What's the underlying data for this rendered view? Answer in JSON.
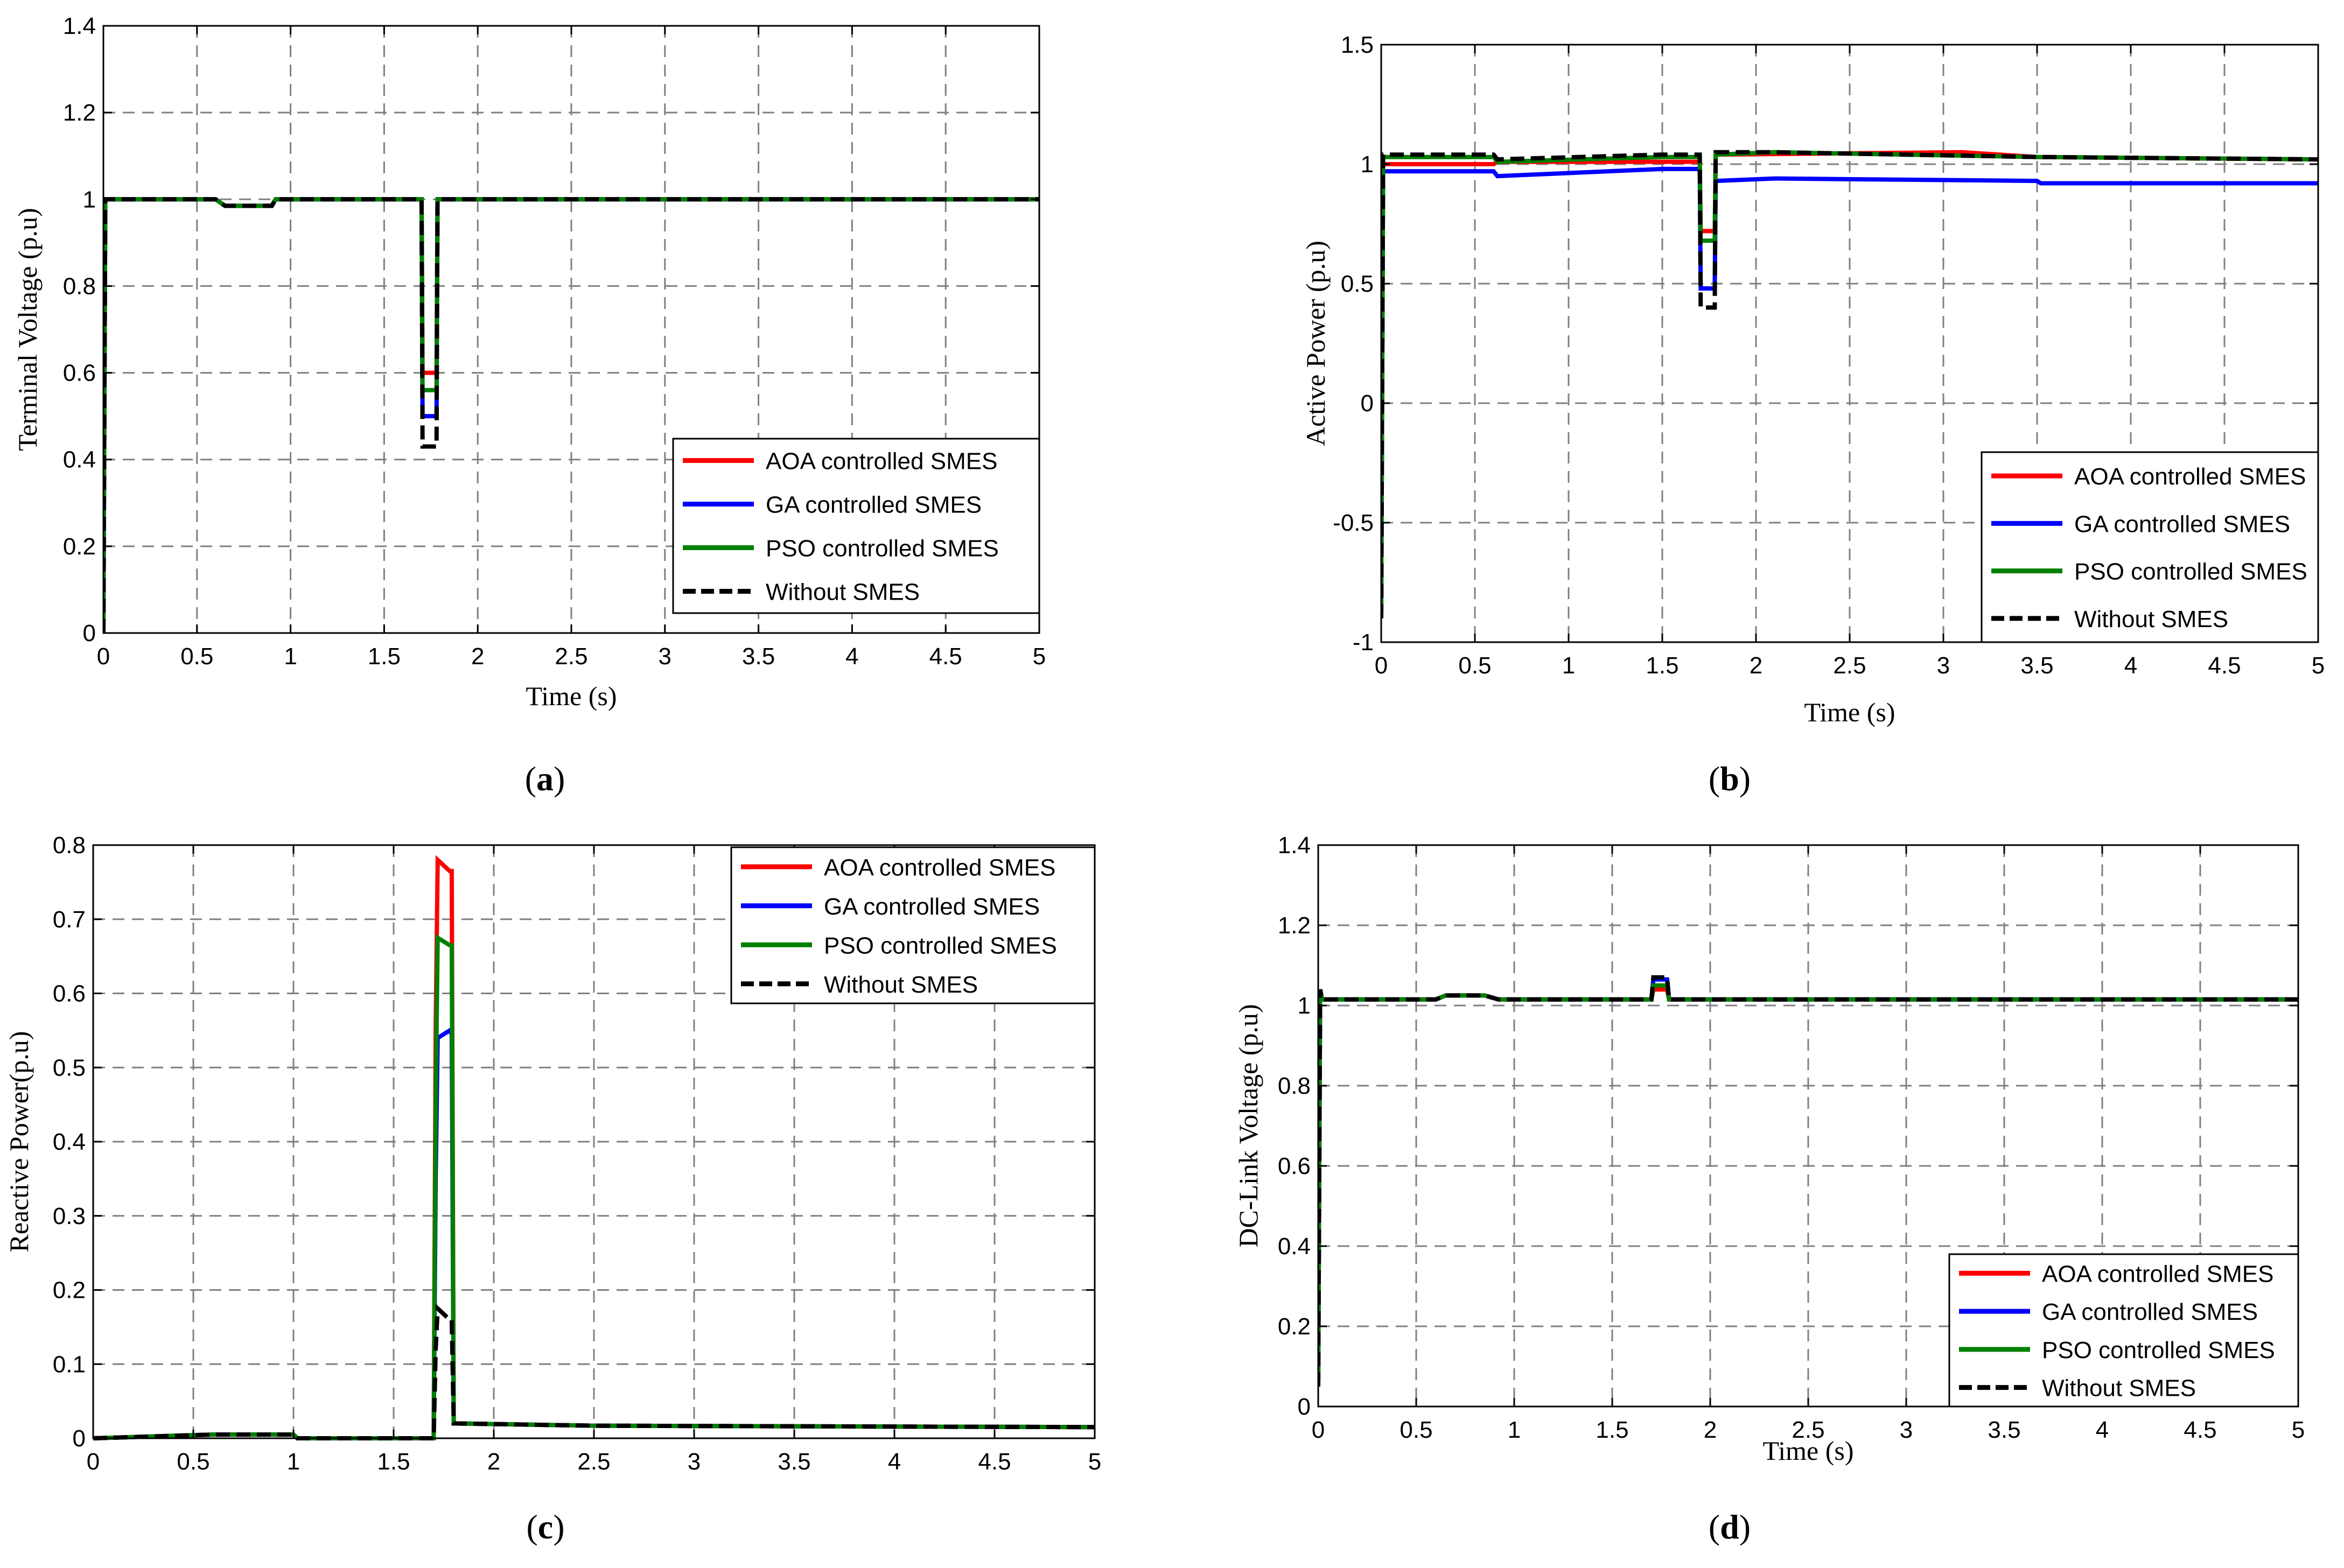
{
  "figure": {
    "subfigure_labels": [
      "(a)",
      "(b)",
      "(c)",
      "(d)"
    ]
  },
  "colors": {
    "aoa": "#ff0000",
    "ga": "#0000ff",
    "pso": "#008000",
    "without": "#000000",
    "grid": "#808080"
  },
  "chart_data": [
    {
      "id": "a",
      "type": "line",
      "label": "(a)",
      "title": "",
      "xlabel": "Time (s)",
      "ylabel": "Terminal Voltage (p.u)",
      "xlim": [
        0,
        5
      ],
      "ylim": [
        0,
        1.4
      ],
      "xticks": [
        0,
        0.5,
        1,
        1.5,
        2,
        2.5,
        3,
        3.5,
        4,
        4.5,
        5
      ],
      "xtick_labels": [
        "0",
        "0.5",
        "1",
        "1.5",
        "2",
        "2.5",
        "3",
        "3.5",
        "4",
        "4.5",
        "5"
      ],
      "yticks": [
        0,
        0.2,
        0.4,
        0.6,
        0.8,
        1,
        1.2,
        1.4
      ],
      "ytick_labels": [
        "0",
        "0.2",
        "0.4",
        "0.6",
        "0.8",
        "1",
        "1.2",
        "1.4"
      ],
      "grid": true,
      "legend_position": "bottom-right",
      "series": [
        {
          "name": "AOA controlled SMES",
          "key": "aoa",
          "dash": false,
          "x": [
            0,
            0.01,
            0.6,
            0.65,
            0.9,
            0.92,
            1.7,
            1.705,
            1.78,
            1.785,
            5
          ],
          "y": [
            0,
            1.0,
            1.0,
            0.985,
            0.985,
            1.0,
            1.0,
            0.6,
            0.6,
            1.0,
            1.0
          ]
        },
        {
          "name": "GA controlled SMES",
          "key": "ga",
          "dash": false,
          "x": [
            0,
            0.01,
            0.6,
            0.65,
            0.9,
            0.92,
            1.7,
            1.705,
            1.78,
            1.785,
            5
          ],
          "y": [
            0,
            1.0,
            1.0,
            0.985,
            0.985,
            1.0,
            1.0,
            0.5,
            0.5,
            1.0,
            1.0
          ]
        },
        {
          "name": "PSO controlled SMES",
          "key": "pso",
          "dash": false,
          "x": [
            0,
            0.01,
            0.6,
            0.65,
            0.9,
            0.92,
            1.7,
            1.705,
            1.78,
            1.785,
            5
          ],
          "y": [
            0,
            1.0,
            1.0,
            0.985,
            0.985,
            1.0,
            1.0,
            0.56,
            0.56,
            1.0,
            1.0
          ]
        },
        {
          "name": "Without  SMES",
          "key": "without",
          "dash": true,
          "x": [
            0,
            0.01,
            0.6,
            0.65,
            0.9,
            0.92,
            1.7,
            1.705,
            1.78,
            1.785,
            5
          ],
          "y": [
            0,
            1.0,
            1.0,
            0.985,
            0.985,
            1.0,
            1.0,
            0.43,
            0.43,
            1.0,
            1.0
          ]
        }
      ]
    },
    {
      "id": "b",
      "type": "line",
      "label": "(b)",
      "title": "",
      "xlabel": "Time (s)",
      "ylabel": "Active Power (p.u)",
      "xlim": [
        0,
        5
      ],
      "ylim": [
        -1,
        1.5
      ],
      "xticks": [
        0,
        0.5,
        1,
        1.5,
        2,
        2.5,
        3,
        3.5,
        4,
        4.5,
        5
      ],
      "xtick_labels": [
        "0",
        "0.5",
        "1",
        "1.5",
        "2",
        "2.5",
        "3",
        "3.5",
        "4",
        "4.5",
        "5"
      ],
      "yticks": [
        -1,
        -0.5,
        0,
        0.5,
        1,
        1.5
      ],
      "ytick_labels": [
        "-1",
        "-0.5",
        "0",
        "0.5",
        "1",
        "1.5"
      ],
      "grid": true,
      "legend_position": "bottom-right",
      "series": [
        {
          "name": "AOA controlled SMES",
          "key": "aoa",
          "dash": false,
          "x": [
            0,
            0.01,
            0.6,
            0.62,
            1.5,
            1.7,
            1.705,
            1.78,
            1.785,
            3.1,
            3.5,
            5
          ],
          "y": [
            -0.9,
            1.0,
            1.0,
            1.01,
            1.01,
            1.01,
            0.72,
            0.72,
            1.04,
            1.05,
            1.03,
            1.02
          ]
        },
        {
          "name": "GA controlled SMES",
          "key": "ga",
          "dash": false,
          "x": [
            0,
            0.01,
            0.6,
            0.62,
            1.5,
            1.7,
            1.705,
            1.78,
            1.785,
            2.1,
            3.5,
            3.52,
            5
          ],
          "y": [
            -0.9,
            0.97,
            0.97,
            0.95,
            0.98,
            0.98,
            0.48,
            0.48,
            0.93,
            0.94,
            0.93,
            0.92,
            0.92
          ]
        },
        {
          "name": "PSO controlled SMES",
          "key": "pso",
          "dash": false,
          "x": [
            0,
            0.01,
            0.6,
            0.62,
            1.5,
            1.7,
            1.705,
            1.78,
            1.785,
            2.1,
            3.5,
            5
          ],
          "y": [
            -0.9,
            1.03,
            1.03,
            1.01,
            1.03,
            1.03,
            0.68,
            0.68,
            1.04,
            1.05,
            1.03,
            1.02
          ]
        },
        {
          "name": "Without SMES",
          "key": "without",
          "dash": true,
          "x": [
            0,
            0.01,
            0.6,
            0.62,
            1.5,
            1.7,
            1.705,
            1.78,
            1.785,
            2.1,
            3.5,
            5
          ],
          "y": [
            -0.9,
            1.04,
            1.04,
            1.02,
            1.04,
            1.04,
            0.4,
            0.4,
            1.05,
            1.05,
            1.03,
            1.02
          ]
        }
      ]
    },
    {
      "id": "c",
      "type": "line",
      "label": "(c)",
      "title": "",
      "xlabel": "",
      "ylabel": "Reactive Power(p.u)",
      "xlim": [
        0,
        5
      ],
      "ylim": [
        0,
        0.8
      ],
      "xticks": [
        0,
        0.5,
        1,
        1.5,
        2,
        2.5,
        3,
        3.5,
        4,
        4.5,
        5
      ],
      "xtick_labels": [
        "0",
        "0.5",
        "1",
        "1.5",
        "2",
        "2.5",
        "3",
        "3.5",
        "4",
        "4.5",
        "5"
      ],
      "yticks": [
        0,
        0.1,
        0.2,
        0.3,
        0.4,
        0.5,
        0.6,
        0.7,
        0.8
      ],
      "ytick_labels": [
        "0",
        "0.1",
        "0.2",
        "0.3",
        "0.4",
        "0.5",
        "0.6",
        "0.7",
        "0.8"
      ],
      "grid": true,
      "legend_position": "top-right",
      "series": [
        {
          "name": "AOA controlled SMES",
          "key": "aoa",
          "dash": false,
          "x": [
            0,
            0.6,
            1.0,
            1.02,
            1.7,
            1.71,
            1.72,
            1.78,
            1.79,
            1.8,
            2.5,
            5
          ],
          "y": [
            0.0,
            0.005,
            0.005,
            0.0,
            0.0,
            0.55,
            0.78,
            0.765,
            0.765,
            0.02,
            0.017,
            0.015
          ]
        },
        {
          "name": "GA controlled SMES",
          "key": "ga",
          "dash": false,
          "x": [
            0,
            0.6,
            1.0,
            1.02,
            1.7,
            1.71,
            1.72,
            1.78,
            1.79,
            1.8,
            2.5,
            5
          ],
          "y": [
            0.0,
            0.005,
            0.005,
            0.0,
            0.0,
            0.35,
            0.54,
            0.55,
            0.545,
            0.02,
            0.017,
            0.015
          ]
        },
        {
          "name": "PSO controlled SMES",
          "key": "pso",
          "dash": false,
          "x": [
            0,
            0.6,
            1.0,
            1.02,
            1.7,
            1.71,
            1.72,
            1.78,
            1.79,
            1.8,
            2.5,
            5
          ],
          "y": [
            0.0,
            0.005,
            0.005,
            0.0,
            0.0,
            0.45,
            0.675,
            0.665,
            0.665,
            0.02,
            0.017,
            0.015
          ]
        },
        {
          "name": "Without SMES",
          "key": "without",
          "dash": true,
          "x": [
            0,
            0.6,
            1.0,
            1.02,
            1.7,
            1.71,
            1.72,
            1.78,
            1.79,
            1.8,
            2.5,
            5
          ],
          "y": [
            0.0,
            0.005,
            0.005,
            0.0,
            0.0,
            0.12,
            0.175,
            0.16,
            0.16,
            0.02,
            0.017,
            0.015
          ]
        }
      ]
    },
    {
      "id": "d",
      "type": "line",
      "label": "(d)",
      "title": "",
      "xlabel": "Time (s)",
      "ylabel": "DC-Link  Voltage (p.u)",
      "xlim": [
        0,
        5
      ],
      "ylim": [
        0,
        1.4
      ],
      "xticks": [
        0,
        0.5,
        1,
        1.5,
        2,
        2.5,
        3,
        3.5,
        4,
        4.5,
        5
      ],
      "xtick_labels": [
        "0",
        "0.5",
        "1",
        "1.5",
        "2",
        "2.5",
        "3",
        "3.5",
        "4",
        "4.5",
        "5"
      ],
      "yticks": [
        0,
        0.2,
        0.4,
        0.6,
        0.8,
        1,
        1.2,
        1.4
      ],
      "ytick_labels": [
        "0",
        "0.2",
        "0.4",
        "0.6",
        "0.8",
        "1",
        "1.2",
        "1.4"
      ],
      "grid": true,
      "legend_position": "bottom-right",
      "series": [
        {
          "name": "AOA controlled SMES",
          "key": "aoa",
          "dash": false,
          "x": [
            0,
            0.01,
            0.02,
            0.6,
            0.65,
            0.85,
            0.92,
            1.7,
            1.71,
            1.78,
            1.79,
            5
          ],
          "y": [
            0.05,
            1.04,
            1.015,
            1.015,
            1.025,
            1.025,
            1.015,
            1.015,
            1.04,
            1.04,
            1.015,
            1.015
          ]
        },
        {
          "name": "GA controlled SMES",
          "key": "ga",
          "dash": false,
          "x": [
            0,
            0.01,
            0.02,
            0.6,
            0.65,
            0.85,
            0.92,
            1.7,
            1.71,
            1.78,
            1.79,
            5
          ],
          "y": [
            0.05,
            1.04,
            1.015,
            1.015,
            1.025,
            1.025,
            1.015,
            1.015,
            1.065,
            1.065,
            1.015,
            1.015
          ]
        },
        {
          "name": "PSO controlled SMES",
          "key": "pso",
          "dash": false,
          "x": [
            0,
            0.01,
            0.02,
            0.6,
            0.65,
            0.85,
            0.92,
            1.7,
            1.71,
            1.78,
            1.79,
            5
          ],
          "y": [
            0.05,
            1.04,
            1.015,
            1.015,
            1.025,
            1.025,
            1.015,
            1.015,
            1.05,
            1.05,
            1.015,
            1.015
          ]
        },
        {
          "name": "Without SMES",
          "key": "without",
          "dash": true,
          "x": [
            0,
            0.01,
            0.02,
            0.6,
            0.65,
            0.85,
            0.92,
            1.7,
            1.71,
            1.78,
            1.79,
            5
          ],
          "y": [
            0.05,
            1.04,
            1.015,
            1.015,
            1.025,
            1.025,
            1.015,
            1.015,
            1.07,
            1.07,
            1.015,
            1.015
          ]
        }
      ]
    }
  ]
}
